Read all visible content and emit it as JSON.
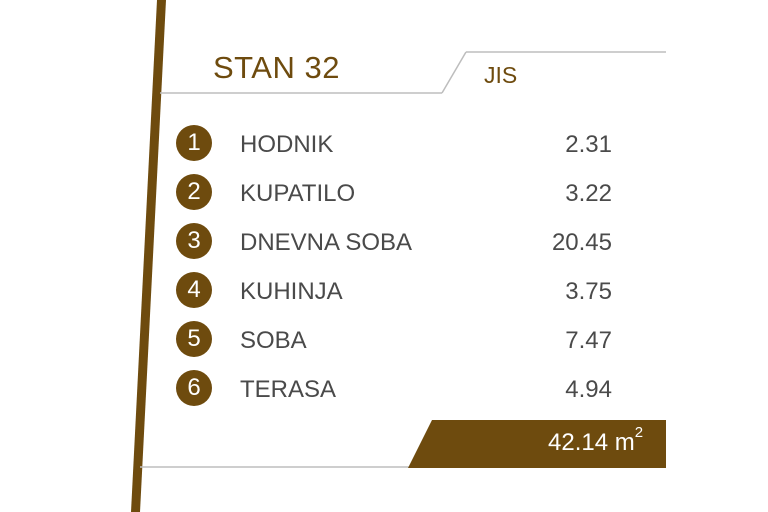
{
  "header": {
    "title": "STAN 32",
    "label": "JIS"
  },
  "rooms": [
    {
      "num": "1",
      "name": "HODNIK",
      "area": "2.31"
    },
    {
      "num": "2",
      "name": "KUPATILO",
      "area": "3.22"
    },
    {
      "num": "3",
      "name": "DNEVNA SOBA",
      "area": "20.45"
    },
    {
      "num": "4",
      "name": "KUHINJA",
      "area": "3.75"
    },
    {
      "num": "5",
      "name": "SOBA",
      "area": "7.47"
    },
    {
      "num": "6",
      "name": "TERASA",
      "area": "4.94"
    }
  ],
  "total": {
    "value": "42.14 m",
    "unit_sup": "2"
  },
  "colors": {
    "accent": "#6e4b0e",
    "text": "#4a4a4a",
    "rule": "#bdbdbd"
  }
}
